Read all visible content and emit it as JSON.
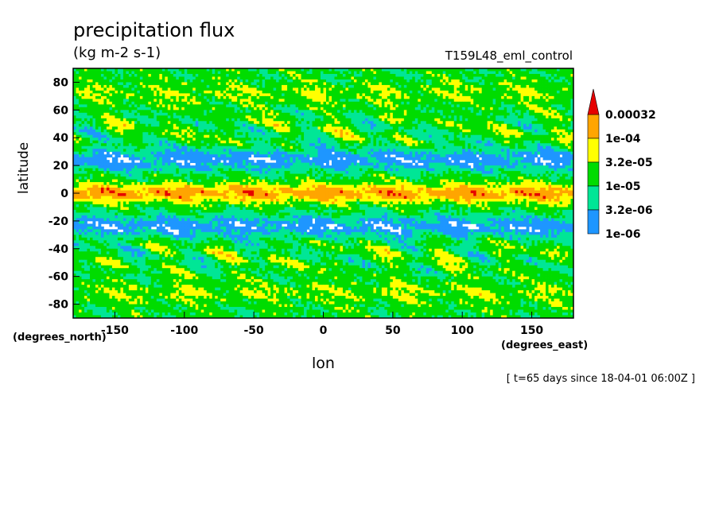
{
  "chart_data": {
    "type": "heatmap",
    "title": "precipitation flux",
    "units": "(kg m-2 s-1)",
    "run_label": "T159L48_eml_control",
    "xlabel": "lon",
    "xlabel_units": "(degrees_east)",
    "ylabel": "latitude",
    "ylabel_units": "(degrees_north)",
    "timestamp": "[ t=65 days since 18-04-01 06:00Z ]",
    "xlim": [
      -180,
      180
    ],
    "ylim": [
      -90,
      90
    ],
    "x_ticks": [
      -150,
      -100,
      -50,
      0,
      50,
      100,
      150
    ],
    "y_ticks": [
      80,
      60,
      40,
      20,
      0,
      -20,
      -40,
      -60,
      -80
    ],
    "colorbar": {
      "levels": [
        "1e-06",
        "3.2e-06",
        "1e-05",
        "3.2e-05",
        "1e-04",
        "0.00032"
      ],
      "colors": [
        "#1e96ff",
        "#00e696",
        "#00dc00",
        "#ffff00",
        "#ffa500",
        "#e60000"
      ]
    }
  }
}
